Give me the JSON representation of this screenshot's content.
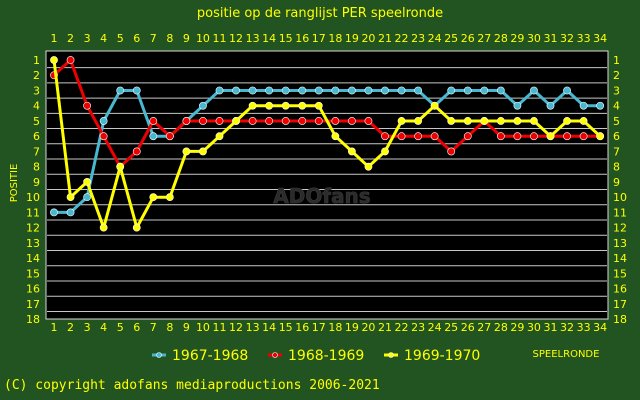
{
  "chart_data": {
    "type": "line",
    "title": "positie op de ranglijst PER speelronde",
    "xlabel": "SPEELRONDE",
    "ylabel": "POSITIE",
    "x": [
      1,
      2,
      3,
      4,
      5,
      6,
      7,
      8,
      9,
      10,
      11,
      12,
      13,
      14,
      15,
      16,
      17,
      18,
      19,
      20,
      21,
      22,
      23,
      24,
      25,
      26,
      27,
      28,
      29,
      30,
      31,
      32,
      33,
      34
    ],
    "ylim": [
      1,
      18
    ],
    "y_inverted": true,
    "grid": true,
    "legend_position": "bottom",
    "series": [
      {
        "name": "1967-1968",
        "color": "#48b8d0",
        "values": [
          11,
          11,
          10,
          5,
          3,
          3,
          6,
          6,
          5,
          4,
          3,
          3,
          3,
          3,
          3,
          3,
          3,
          3,
          3,
          3,
          3,
          3,
          3,
          4,
          3,
          3,
          3,
          3,
          4,
          3,
          4,
          3,
          4,
          4
        ]
      },
      {
        "name": "1968-1969",
        "color": "#ee0000",
        "values": [
          2,
          1,
          4,
          6,
          8,
          7,
          5,
          6,
          5,
          5,
          5,
          5,
          5,
          5,
          5,
          5,
          5,
          5,
          5,
          5,
          6,
          6,
          6,
          6,
          7,
          6,
          5,
          6,
          6,
          6,
          6,
          6,
          6,
          6
        ]
      },
      {
        "name": "1969-1970",
        "color": "#ffff00",
        "values": [
          1,
          10,
          9,
          12,
          8,
          12,
          10,
          10,
          7,
          7,
          6,
          5,
          4,
          4,
          4,
          4,
          4,
          6,
          7,
          8,
          7,
          5,
          5,
          4,
          5,
          5,
          5,
          5,
          5,
          5,
          6,
          5,
          5,
          6
        ]
      }
    ]
  },
  "watermark": "ADOfans",
  "copyright": "(C) copyright adofans mediaproductions 2006-2021"
}
